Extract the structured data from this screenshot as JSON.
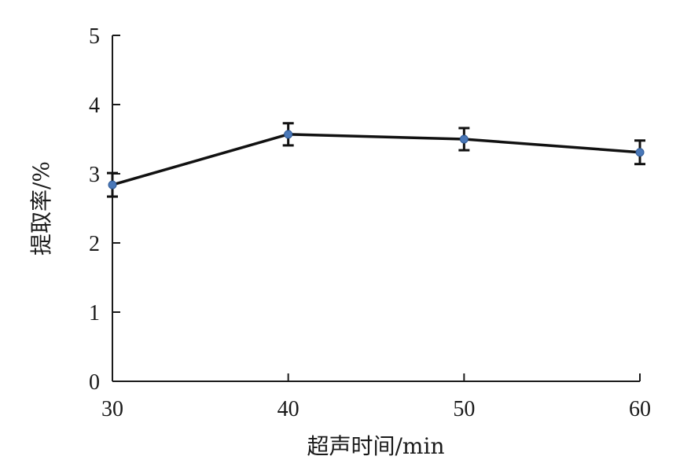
{
  "chart_data": {
    "type": "line",
    "xlabel": "超声时间/min",
    "ylabel": "提取率/%",
    "x": [
      30,
      40,
      50,
      60
    ],
    "xticks": [
      "30",
      "40",
      "50",
      "60"
    ],
    "yticks": [
      "0",
      "1",
      "2",
      "3",
      "4",
      "5"
    ],
    "xlim": [
      30,
      60
    ],
    "ylim": [
      0,
      5
    ],
    "grid": false,
    "series": [
      {
        "values": [
          2.84,
          3.57,
          3.5,
          3.31
        ],
        "error": [
          0.17,
          0.16,
          0.16,
          0.17
        ],
        "line_color": "#111111",
        "marker_color": "#4a78b8"
      }
    ]
  }
}
